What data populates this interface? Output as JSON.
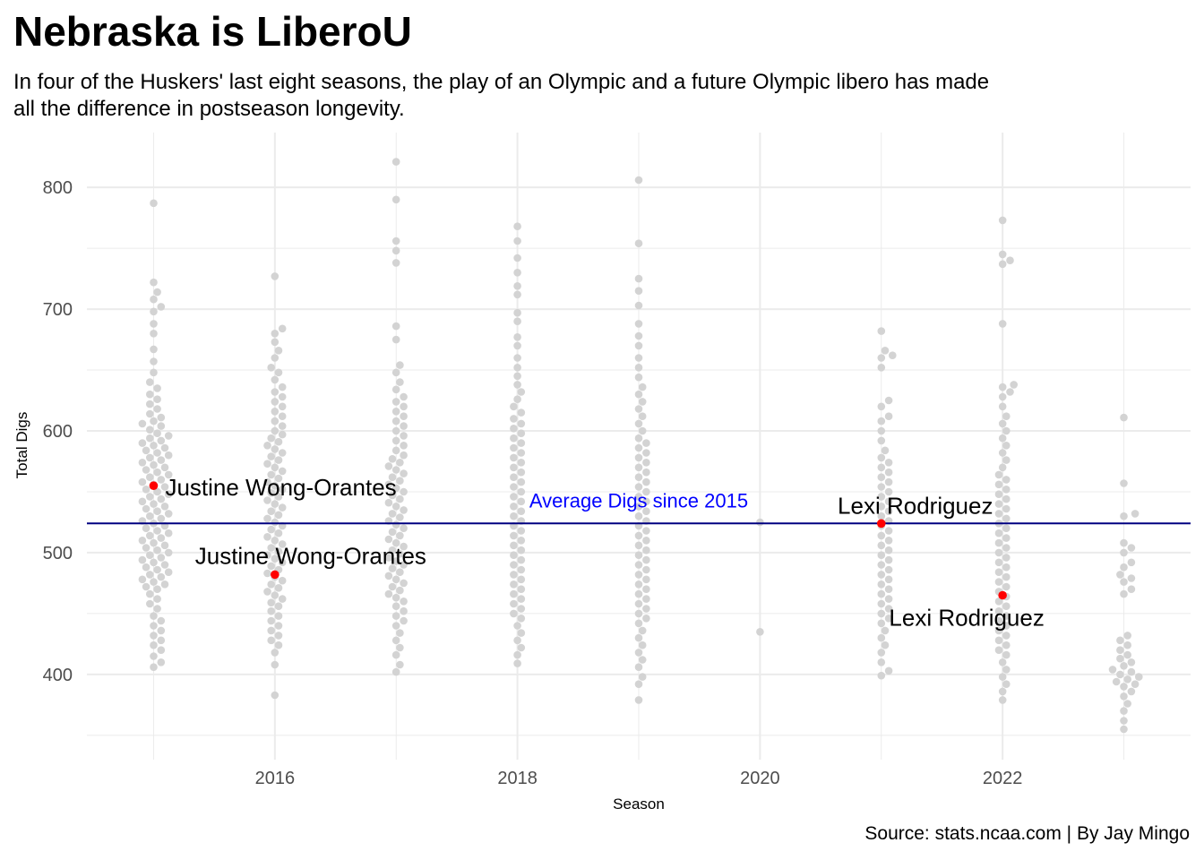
{
  "title": "Nebraska is LiberoU",
  "subtitle": "In four of the Huskers' last eight seasons, the play of an Olympic and a future Olympic libero has made\n all the difference in postseason longevity.",
  "caption": "Source: stats.ncaa.com | By Jay Mingo",
  "colors": {
    "points": "#d3d3d3",
    "highlight": "#ff0000",
    "avg_line": "#000080",
    "avg_label": "#0000ff",
    "grid": "#ebebeb"
  },
  "chart_data": {
    "type": "scatter",
    "subtype": "beeswarm",
    "xlabel": "Season",
    "ylabel": "Total Digs",
    "xlim": [
      2014.45,
      2023.55
    ],
    "ylim": [
      330,
      845
    ],
    "x_ticks": [
      2016,
      2018,
      2020,
      2022
    ],
    "y_ticks": [
      400,
      500,
      600,
      700,
      800
    ],
    "grid": true,
    "legend": "none",
    "reference_line": {
      "y": 524,
      "label": "Average Digs since 2015",
      "label_x": 2019.0,
      "label_y": 543
    },
    "series": [
      {
        "season": 2015,
        "values": [
          787,
          722,
          714,
          708,
          702,
          698,
          688,
          680,
          667,
          657,
          648,
          640,
          635,
          630,
          626,
          622,
          618,
          614,
          611,
          608,
          606,
          604,
          601,
          598,
          596,
          594,
          592,
          590,
          588,
          586,
          584,
          582,
          580,
          578,
          576,
          574,
          572,
          570,
          568,
          566,
          564,
          562,
          560,
          558,
          556,
          554,
          552,
          550,
          548,
          546,
          544,
          542,
          540,
          538,
          536,
          534,
          532,
          530,
          528,
          526,
          524,
          522,
          520,
          518,
          516,
          514,
          512,
          510,
          508,
          506,
          504,
          502,
          500,
          498,
          496,
          494,
          492,
          490,
          488,
          486,
          484,
          482,
          480,
          478,
          476,
          474,
          472,
          470,
          466,
          462,
          458,
          454,
          448,
          444,
          440,
          436,
          432,
          428,
          424,
          420,
          415,
          410,
          406
        ]
      },
      {
        "season": 2016,
        "values": [
          727,
          684,
          680,
          673,
          666,
          660,
          652,
          648,
          642,
          636,
          632,
          628,
          624,
          620,
          616,
          612,
          608,
          604,
          600,
          597,
          594,
          591,
          588,
          585,
          582,
          579,
          576,
          573,
          570,
          567,
          564,
          561,
          558,
          555,
          552,
          549,
          546,
          543,
          540,
          537,
          534,
          531,
          528,
          525,
          522,
          519,
          516,
          513,
          510,
          507,
          504,
          501,
          498,
          495,
          492,
          489,
          486,
          483,
          480,
          477,
          474,
          471,
          468,
          465,
          462,
          459,
          456,
          452,
          448,
          444,
          440,
          436,
          432,
          428,
          424,
          418,
          408,
          383
        ]
      },
      {
        "season": 2017,
        "values": [
          821,
          790,
          756,
          748,
          738,
          686,
          675,
          654,
          648,
          640,
          634,
          628,
          624,
          620,
          616,
          612,
          608,
          604,
          600,
          596,
          592,
          588,
          584,
          580,
          577,
          574,
          571,
          568,
          565,
          562,
          559,
          556,
          553,
          550,
          547,
          544,
          541,
          538,
          535,
          532,
          529,
          526,
          523,
          520,
          517,
          514,
          511,
          508,
          505,
          502,
          499,
          496,
          493,
          490,
          487,
          484,
          481,
          478,
          475,
          472,
          469,
          466,
          463,
          460,
          456,
          452,
          448,
          444,
          440,
          434,
          428,
          422,
          416,
          408,
          402
        ]
      },
      {
        "season": 2018,
        "values": [
          768,
          756,
          742,
          730,
          719,
          712,
          697,
          690,
          677,
          670,
          660,
          652,
          645,
          638,
          632,
          626,
          620,
          615,
          610,
          606,
          602,
          598,
          594,
          590,
          586,
          582,
          578,
          574,
          570,
          566,
          562,
          558,
          554,
          550,
          546,
          542,
          538,
          534,
          530,
          526,
          522,
          518,
          514,
          510,
          506,
          502,
          498,
          494,
          490,
          486,
          482,
          478,
          474,
          470,
          466,
          462,
          458,
          454,
          450,
          446,
          440,
          434,
          428,
          422,
          416,
          409
        ]
      },
      {
        "season": 2019,
        "values": [
          806,
          754,
          725,
          715,
          703,
          688,
          678,
          670,
          660,
          652,
          644,
          636,
          630,
          624,
          618,
          612,
          606,
          600,
          594,
          590,
          586,
          582,
          578,
          574,
          570,
          566,
          562,
          558,
          554,
          550,
          546,
          542,
          538,
          534,
          530,
          526,
          522,
          518,
          514,
          510,
          506,
          502,
          498,
          494,
          490,
          486,
          482,
          478,
          474,
          470,
          466,
          462,
          458,
          454,
          450,
          446,
          442,
          436,
          430,
          424,
          418,
          412,
          406,
          398,
          392,
          379
        ]
      },
      {
        "season": 2020,
        "values": [
          525,
          435
        ]
      },
      {
        "season": 2021,
        "values": [
          682,
          666,
          662,
          660,
          652,
          625,
          620,
          612,
          608,
          600,
          592,
          584,
          578,
          574,
          570,
          566,
          562,
          558,
          554,
          550,
          546,
          542,
          538,
          534,
          530,
          526,
          522,
          518,
          514,
          510,
          506,
          502,
          498,
          494,
          490,
          486,
          482,
          478,
          474,
          470,
          466,
          462,
          458,
          454,
          450,
          446,
          442,
          436,
          430,
          424,
          418,
          410,
          403,
          399
        ]
      },
      {
        "season": 2022,
        "values": [
          773,
          745,
          740,
          737,
          688,
          638,
          636,
          632,
          628,
          620,
          612,
          606,
          600,
          594,
          588,
          582,
          576,
          570,
          564,
          560,
          556,
          552,
          548,
          544,
          540,
          536,
          532,
          528,
          524,
          520,
          516,
          512,
          508,
          504,
          500,
          496,
          492,
          488,
          484,
          480,
          476,
          472,
          468,
          464,
          460,
          456,
          452,
          448,
          444,
          440,
          436,
          432,
          428,
          424,
          420,
          416,
          410,
          404,
          398,
          392,
          386,
          379
        ]
      },
      {
        "season": 2023,
        "values": [
          611,
          557,
          532,
          530,
          508,
          504,
          500,
          492,
          488,
          482,
          479,
          476,
          470,
          466,
          432,
          428,
          424,
          420,
          416,
          413,
          410,
          407,
          404,
          402,
          400,
          398,
          396,
          394,
          392,
          390,
          386,
          382,
          376,
          370,
          362,
          355
        ]
      }
    ],
    "highlights": [
      {
        "season": 2015,
        "value": 555,
        "label": "Justine Wong-Orantes"
      },
      {
        "season": 2016,
        "value": 482,
        "label": "Justine Wong-Orantes"
      },
      {
        "season": 2021,
        "value": 524,
        "label": "Lexi Rodriguez"
      },
      {
        "season": 2022,
        "value": 465,
        "label": "Lexi Rodriguez"
      }
    ]
  }
}
